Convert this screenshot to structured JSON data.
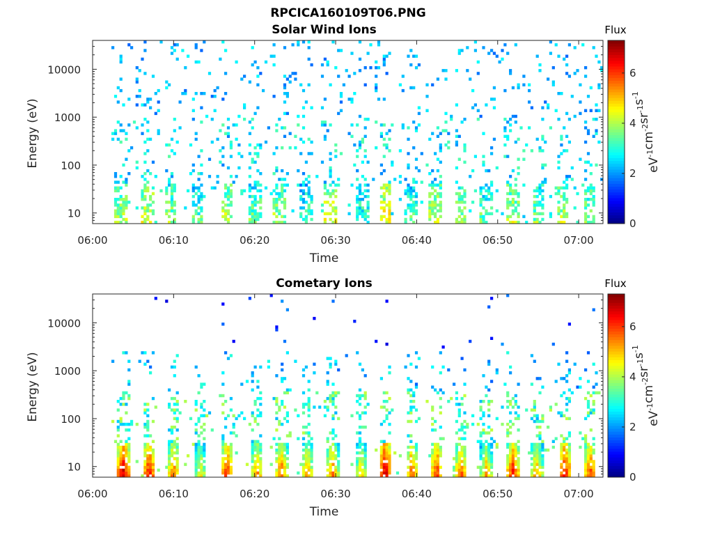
{
  "figure_title": "RPCICA160109T06.PNG",
  "colormap": [
    "#00007f",
    "#0000ff",
    "#007fff",
    "#00ffff",
    "#7fff7f",
    "#ffff00",
    "#ff7f00",
    "#ff0000",
    "#7f0000"
  ],
  "chart_data": [
    {
      "type": "heatmap",
      "title": "Solar Wind Ions",
      "xlabel": "Time",
      "ylabel": "Energy (eV)",
      "y_scale": "log",
      "xlim": [
        "06:00",
        "07:03"
      ],
      "ylim": [
        6,
        40000
      ],
      "xticks": [
        "06:00",
        "06:10",
        "06:20",
        "06:30",
        "06:40",
        "06:50",
        "07:00"
      ],
      "yticks": [
        "10",
        "100",
        "1000",
        "10000"
      ],
      "colorbar": {
        "title": "Flux",
        "label": "eV-1cm-2sr-1s-1",
        "range": [
          0,
          7.3
        ],
        "ticks": [
          "0",
          "2",
          "4",
          "6"
        ]
      },
      "peak_times_min": [
        3.5,
        6.8,
        9.6,
        13.0,
        16.5,
        20.0,
        23.1,
        26.4,
        29.4,
        33.4,
        36.2,
        39.3,
        42.3,
        45.4,
        48.6,
        51.9,
        55.0,
        58.0,
        61.3
      ],
      "peak_flux_low_energy": [
        4.0,
        4.3,
        3.8,
        3.4,
        4.2,
        3.6,
        3.9,
        3.3,
        4.5,
        3.2,
        4.6,
        3.4,
        4.2,
        3.9,
        3.5,
        4.1,
        3.7,
        4.0,
        3.8
      ],
      "background_flux": 2.3
    },
    {
      "type": "heatmap",
      "title": "Cometary Ions",
      "xlabel": "Time",
      "ylabel": "Energy (eV)",
      "y_scale": "log",
      "xlim": [
        "06:00",
        "07:03"
      ],
      "ylim": [
        6,
        40000
      ],
      "xticks": [
        "06:00",
        "06:10",
        "06:20",
        "06:30",
        "06:40",
        "06:50",
        "07:00"
      ],
      "yticks": [
        "10",
        "100",
        "1000",
        "10000"
      ],
      "colorbar": {
        "title": "Flux",
        "label": "eV-1cm-2sr-1s-1",
        "range": [
          0,
          7.3
        ],
        "ticks": [
          "0",
          "2",
          "4",
          "6"
        ]
      },
      "peak_times_min": [
        3.8,
        7.0,
        10.0,
        13.3,
        16.6,
        20.3,
        23.3,
        26.5,
        29.6,
        33.2,
        36.1,
        39.4,
        42.5,
        45.5,
        48.6,
        51.9,
        54.8,
        58.3,
        61.4
      ],
      "peak_flux_low_energy": [
        6.9,
        6.6,
        5.9,
        5.0,
        6.3,
        5.6,
        6.0,
        5.5,
        5.8,
        5.2,
        7.0,
        6.0,
        6.3,
        6.0,
        5.4,
        6.5,
        5.6,
        6.6,
        6.2
      ],
      "background_flux": 2.6
    }
  ]
}
